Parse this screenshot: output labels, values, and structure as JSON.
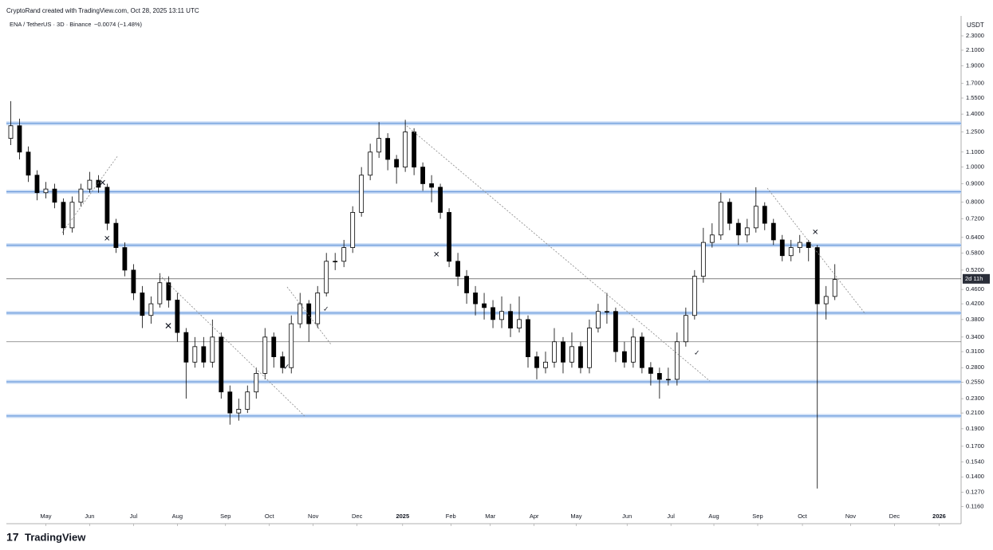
{
  "chart_data": {
    "type": "candlestick",
    "credit": "CryptoRand created with TradingView.com, Oct 28, 2025 13:11 UTC",
    "title": "ENA / TetherUS · 3D · Binance",
    "change": "−0.0074 (−1.48%)",
    "y_unit": "USDT",
    "countdown": "2d 11h",
    "brand": "TradingView",
    "log_scale": true,
    "up_color": "#ffffff",
    "down_color": "#000000",
    "ylim": [
      0.104,
      2.61
    ],
    "yticks": [
      {
        "value": 2.3,
        "label": "2.3000"
      },
      {
        "value": 2.1,
        "label": "2.1000"
      },
      {
        "value": 1.9,
        "label": "1.9000"
      },
      {
        "value": 1.7,
        "label": "1.7000"
      },
      {
        "value": 1.55,
        "label": "1.5500"
      },
      {
        "value": 1.4,
        "label": "1.4000"
      },
      {
        "value": 1.25,
        "label": "1.2500"
      },
      {
        "value": 1.1,
        "label": "1.1000"
      },
      {
        "value": 1.0,
        "label": "1.0000"
      },
      {
        "value": 0.9,
        "label": "0.9000"
      },
      {
        "value": 0.8,
        "label": "0.8000"
      },
      {
        "value": 0.72,
        "label": "0.7200"
      },
      {
        "value": 0.64,
        "label": "0.6400"
      },
      {
        "value": 0.58,
        "label": "0.5800"
      },
      {
        "value": 0.52,
        "label": "0.5200"
      },
      {
        "value": 0.46,
        "label": "0.4600"
      },
      {
        "value": 0.42,
        "label": "0.4200"
      },
      {
        "value": 0.38,
        "label": "0.3800"
      },
      {
        "value": 0.34,
        "label": "0.3400"
      },
      {
        "value": 0.31,
        "label": "0.3100"
      },
      {
        "value": 0.28,
        "label": "0.2800"
      },
      {
        "value": 0.255,
        "label": "0.2550"
      },
      {
        "value": 0.23,
        "label": "0.2300"
      },
      {
        "value": 0.21,
        "label": "0.2100"
      },
      {
        "value": 0.19,
        "label": "0.1900"
      },
      {
        "value": 0.17,
        "label": "0.1700"
      },
      {
        "value": 0.154,
        "label": "0.1540"
      },
      {
        "value": 0.14,
        "label": "0.1400"
      },
      {
        "value": 0.127,
        "label": "0.1270"
      },
      {
        "value": 0.116,
        "label": "0.1160"
      }
    ],
    "xlim": [
      -0.5,
      108.4
    ],
    "xticks": [
      {
        "value": 4.0,
        "label": "May"
      },
      {
        "value": 9.0,
        "label": "Jun"
      },
      {
        "value": 14.0,
        "label": "Jul"
      },
      {
        "value": 19.0,
        "label": "Aug"
      },
      {
        "value": 24.5,
        "label": "Sep"
      },
      {
        "value": 29.5,
        "label": "Oct"
      },
      {
        "value": 34.5,
        "label": "Nov"
      },
      {
        "value": 39.5,
        "label": "Dec"
      },
      {
        "value": 44.7,
        "label": "2025"
      },
      {
        "value": 50.2,
        "label": "Feb"
      },
      {
        "value": 54.7,
        "label": "Mar"
      },
      {
        "value": 59.7,
        "label": "Apr"
      },
      {
        "value": 64.5,
        "label": "May"
      },
      {
        "value": 70.3,
        "label": "Jun"
      },
      {
        "value": 75.3,
        "label": "Jul"
      },
      {
        "value": 80.2,
        "label": "Aug"
      },
      {
        "value": 85.2,
        "label": "Sep"
      },
      {
        "value": 90.3,
        "label": "Oct"
      },
      {
        "value": 95.8,
        "label": "Nov"
      },
      {
        "value": 100.8,
        "label": "Dec"
      },
      {
        "value": 105.9,
        "label": "2026"
      }
    ],
    "levels": [
      {
        "value": 1.32,
        "color": "#5b8fd6"
      },
      {
        "value": 0.855,
        "color": "#5b8fd6"
      },
      {
        "value": 0.609,
        "color": "#5b8fd6"
      },
      {
        "value": 0.396,
        "color": "#5b8fd6"
      },
      {
        "value": 0.256,
        "color": "#5b8fd6"
      },
      {
        "value": 0.206,
        "color": "#5b8fd6"
      },
      {
        "value": 0.33,
        "color": "#777777"
      }
    ],
    "current_price": 0.492,
    "candles": [
      [
        1.2,
        1.52,
        1.15,
        1.3
      ],
      [
        1.3,
        1.36,
        1.05,
        1.1
      ],
      [
        1.1,
        1.14,
        0.91,
        0.95
      ],
      [
        0.95,
        0.98,
        0.81,
        0.85
      ],
      [
        0.85,
        0.91,
        0.82,
        0.87
      ],
      [
        0.87,
        0.9,
        0.77,
        0.8
      ],
      [
        0.8,
        0.82,
        0.65,
        0.68
      ],
      [
        0.68,
        0.83,
        0.66,
        0.8
      ],
      [
        0.8,
        0.9,
        0.78,
        0.87
      ],
      [
        0.87,
        0.97,
        0.85,
        0.92
      ],
      [
        0.92,
        0.95,
        0.85,
        0.88
      ],
      [
        0.88,
        0.9,
        0.67,
        0.7
      ],
      [
        0.7,
        0.72,
        0.58,
        0.6
      ],
      [
        0.6,
        0.62,
        0.5,
        0.52
      ],
      [
        0.52,
        0.54,
        0.43,
        0.45
      ],
      [
        0.45,
        0.47,
        0.36,
        0.39
      ],
      [
        0.39,
        0.44,
        0.37,
        0.42
      ],
      [
        0.42,
        0.51,
        0.41,
        0.48
      ],
      [
        0.48,
        0.5,
        0.41,
        0.43
      ],
      [
        0.43,
        0.45,
        0.33,
        0.35
      ],
      [
        0.35,
        0.36,
        0.23,
        0.29
      ],
      [
        0.29,
        0.34,
        0.28,
        0.32
      ],
      [
        0.32,
        0.34,
        0.28,
        0.29
      ],
      [
        0.29,
        0.38,
        0.28,
        0.34
      ],
      [
        0.34,
        0.35,
        0.23,
        0.24
      ],
      [
        0.24,
        0.25,
        0.195,
        0.21
      ],
      [
        0.21,
        0.23,
        0.2,
        0.215
      ],
      [
        0.215,
        0.25,
        0.21,
        0.24
      ],
      [
        0.24,
        0.28,
        0.23,
        0.27
      ],
      [
        0.27,
        0.36,
        0.26,
        0.34
      ],
      [
        0.34,
        0.35,
        0.28,
        0.3
      ],
      [
        0.3,
        0.31,
        0.27,
        0.28
      ],
      [
        0.28,
        0.39,
        0.27,
        0.37
      ],
      [
        0.37,
        0.45,
        0.36,
        0.42
      ],
      [
        0.42,
        0.43,
        0.33,
        0.37
      ],
      [
        0.37,
        0.47,
        0.36,
        0.45
      ],
      [
        0.45,
        0.58,
        0.44,
        0.55
      ],
      [
        0.55,
        0.58,
        0.52,
        0.55
      ],
      [
        0.55,
        0.63,
        0.53,
        0.6
      ],
      [
        0.6,
        0.78,
        0.58,
        0.75
      ],
      [
        0.75,
        1.0,
        0.73,
        0.95
      ],
      [
        0.95,
        1.16,
        0.92,
        1.1
      ],
      [
        1.1,
        1.33,
        1.06,
        1.2
      ],
      [
        1.2,
        1.24,
        0.98,
        1.05
      ],
      [
        1.05,
        1.08,
        0.9,
        1.0
      ],
      [
        1.0,
        1.35,
        0.97,
        1.25
      ],
      [
        1.25,
        1.28,
        0.95,
        1.0
      ],
      [
        1.0,
        1.03,
        0.86,
        0.9
      ],
      [
        0.9,
        0.95,
        0.8,
        0.88
      ],
      [
        0.88,
        0.9,
        0.72,
        0.75
      ],
      [
        0.75,
        0.77,
        0.53,
        0.55
      ],
      [
        0.55,
        0.58,
        0.47,
        0.5
      ],
      [
        0.5,
        0.52,
        0.42,
        0.45
      ],
      [
        0.45,
        0.47,
        0.39,
        0.42
      ],
      [
        0.42,
        0.45,
        0.38,
        0.41
      ],
      [
        0.41,
        0.43,
        0.36,
        0.38
      ],
      [
        0.38,
        0.44,
        0.36,
        0.4
      ],
      [
        0.4,
        0.42,
        0.34,
        0.36
      ],
      [
        0.36,
        0.44,
        0.35,
        0.38
      ],
      [
        0.38,
        0.39,
        0.28,
        0.3
      ],
      [
        0.3,
        0.31,
        0.26,
        0.28
      ],
      [
        0.28,
        0.31,
        0.27,
        0.29
      ],
      [
        0.29,
        0.36,
        0.28,
        0.33
      ],
      [
        0.33,
        0.34,
        0.27,
        0.29
      ],
      [
        0.29,
        0.35,
        0.28,
        0.32
      ],
      [
        0.32,
        0.33,
        0.27,
        0.28
      ],
      [
        0.28,
        0.38,
        0.27,
        0.36
      ],
      [
        0.36,
        0.42,
        0.35,
        0.4
      ],
      [
        0.4,
        0.45,
        0.37,
        0.4
      ],
      [
        0.4,
        0.41,
        0.29,
        0.31
      ],
      [
        0.31,
        0.33,
        0.28,
        0.29
      ],
      [
        0.29,
        0.36,
        0.28,
        0.34
      ],
      [
        0.34,
        0.35,
        0.27,
        0.28
      ],
      [
        0.28,
        0.29,
        0.25,
        0.27
      ],
      [
        0.27,
        0.28,
        0.23,
        0.26
      ],
      [
        0.26,
        0.28,
        0.25,
        0.26
      ],
      [
        0.26,
        0.35,
        0.25,
        0.33
      ],
      [
        0.33,
        0.41,
        0.32,
        0.39
      ],
      [
        0.39,
        0.52,
        0.38,
        0.5
      ],
      [
        0.5,
        0.68,
        0.48,
        0.62
      ],
      [
        0.62,
        0.7,
        0.6,
        0.65
      ],
      [
        0.65,
        0.85,
        0.63,
        0.8
      ],
      [
        0.8,
        0.82,
        0.67,
        0.7
      ],
      [
        0.7,
        0.72,
        0.61,
        0.65
      ],
      [
        0.65,
        0.72,
        0.62,
        0.68
      ],
      [
        0.68,
        0.88,
        0.66,
        0.78
      ],
      [
        0.78,
        0.8,
        0.67,
        0.7
      ],
      [
        0.7,
        0.72,
        0.61,
        0.63
      ],
      [
        0.63,
        0.65,
        0.55,
        0.57
      ],
      [
        0.57,
        0.63,
        0.55,
        0.6
      ],
      [
        0.6,
        0.65,
        0.58,
        0.62
      ],
      [
        0.62,
        0.63,
        0.55,
        0.6
      ],
      [
        0.6,
        0.61,
        0.13,
        0.42
      ],
      [
        0.42,
        0.47,
        0.38,
        0.44
      ],
      [
        0.44,
        0.54,
        0.43,
        0.49
      ]
    ]
  }
}
